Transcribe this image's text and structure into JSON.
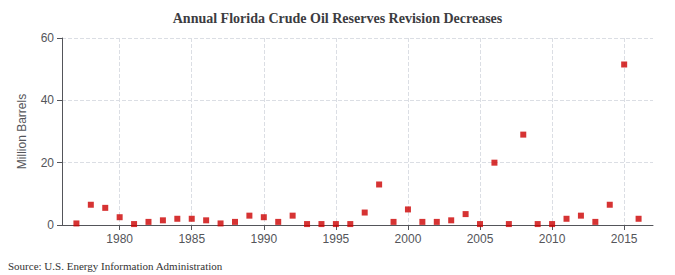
{
  "chart_data": {
    "type": "scatter",
    "title": "Annual Florida Crude Oil Reserves Revision Decreases",
    "ylabel": "Million Barrels",
    "annotation": "Source: U.S. Energy Information Administration",
    "x": [
      1977,
      1978,
      1979,
      1980,
      1981,
      1982,
      1983,
      1984,
      1985,
      1986,
      1987,
      1988,
      1989,
      1990,
      1991,
      1992,
      1993,
      1994,
      1995,
      1996,
      1997,
      1998,
      1999,
      2000,
      2001,
      2002,
      2003,
      2004,
      2005,
      2006,
      2007,
      2008,
      2009,
      2010,
      2011,
      2012,
      2013,
      2014,
      2015,
      2016
    ],
    "values": [
      0.5,
      6.5,
      5.5,
      2.5,
      0.3,
      1.0,
      1.5,
      2.0,
      2.0,
      1.5,
      0.5,
      1.0,
      3.0,
      2.5,
      1.0,
      3.0,
      0.3,
      0.3,
      0.3,
      0.3,
      4.0,
      13.0,
      1.0,
      5.0,
      1.0,
      1.0,
      1.5,
      3.5,
      0.3,
      20.0,
      0.3,
      29.0,
      0.3,
      0.3,
      2.0,
      3.0,
      1.0,
      6.5,
      51.5,
      2.0
    ],
    "color": "#cc0000",
    "marker": "square",
    "xlim": [
      1976,
      2017
    ],
    "xticks": [
      1980,
      1985,
      1990,
      1995,
      2000,
      2005,
      2010,
      2015
    ],
    "ylim": [
      0,
      60
    ],
    "yticks": [
      0,
      20,
      40,
      60
    ],
    "grid": true
  }
}
